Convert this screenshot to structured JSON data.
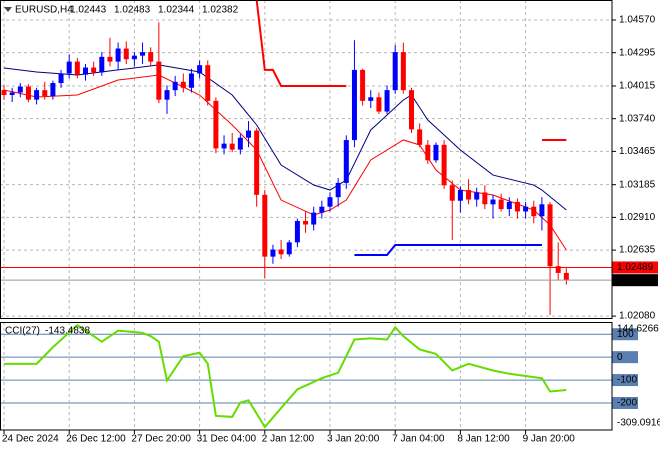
{
  "chart_data": {
    "type": "candlestick",
    "symbol": "EURUSD,H4",
    "categories": [
      "24 Dec 2024",
      null,
      null,
      null,
      null,
      null,
      null,
      null,
      "26 Dec 12:00",
      null,
      null,
      null,
      null,
      null,
      null,
      null,
      "27 Dec 20:00",
      null,
      null,
      null,
      null,
      null,
      null,
      null,
      "31 Dec 04:00",
      null,
      null,
      null,
      null,
      null,
      null,
      null,
      "2 Jan 12:00",
      null,
      null,
      null,
      null,
      null,
      null,
      null,
      "3 Jan 20:00",
      null,
      null,
      null,
      null,
      null,
      null,
      null,
      "7 Jan 04:00",
      null,
      null,
      null,
      null,
      null,
      null,
      null,
      "8 Jan 12:00",
      null,
      null,
      null,
      null,
      null,
      null,
      null,
      "9 Jan 20:00",
      null,
      null,
      null,
      null,
      null
    ],
    "open": [
      1.03981,
      1.03939,
      1.0396,
      1.0401,
      1.039,
      1.0398,
      1.0393,
      1.0404,
      1.0412,
      1.0422,
      1.0411,
      1.0417,
      1.0413,
      1.0426,
      1.0422,
      1.0433,
      1.0424,
      1.0427,
      1.043,
      1.0422,
      1.039,
      1.0398,
      1.0405,
      1.04,
      1.0412,
      1.0419,
      1.0389,
      1.0349,
      1.0353,
      1.0348,
      1.0358,
      1.0364,
      1.031,
      1.0258,
      1.0264,
      1.026,
      1.027,
      1.0288,
      1.0285,
      1.0295,
      1.03,
      1.0308,
      1.032,
      1.0356,
      1.0415,
      1.0389,
      1.0392,
      1.038,
      1.0398,
      1.043,
      1.0398,
      1.0365,
      1.0352,
      1.0339,
      1.0352,
      1.0318,
      1.0305,
      1.0314,
      1.0306,
      1.0312,
      1.0302,
      1.0306,
      1.0298,
      1.0304,
      1.0296,
      1.03,
      1.0292,
      1.0302,
      1.025,
      1.02443
    ],
    "high": [
      1.04023,
      1.04,
      1.0404,
      1.0403,
      1.04,
      1.0405,
      1.0406,
      1.0415,
      1.0428,
      1.0425,
      1.042,
      1.0422,
      1.043,
      1.0442,
      1.0438,
      1.0439,
      1.043,
      1.0438,
      1.0434,
      1.0455,
      1.0402,
      1.041,
      1.0412,
      1.0416,
      1.0423,
      1.0423,
      1.0392,
      1.036,
      1.0362,
      1.0361,
      1.0372,
      1.0366,
      1.0314,
      1.0268,
      1.0272,
      1.0272,
      1.029,
      1.0296,
      1.03,
      1.0305,
      1.0312,
      1.0324,
      1.036,
      1.044,
      1.0416,
      1.0398,
      1.0396,
      1.0402,
      1.0436,
      1.0438,
      1.04,
      1.037,
      1.0356,
      1.0354,
      1.0356,
      1.0322,
      1.0317,
      1.0323,
      1.0316,
      1.0318,
      1.031,
      1.0311,
      1.0308,
      1.0307,
      1.0304,
      1.0305,
      1.0308,
      1.0304,
      1.027,
      1.02483
    ],
    "low": [
      1.03897,
      1.0388,
      1.0392,
      1.0388,
      1.0386,
      1.039,
      1.039,
      1.04,
      1.0408,
      1.0408,
      1.0406,
      1.041,
      1.041,
      1.0418,
      1.0415,
      1.042,
      1.0418,
      1.042,
      1.0418,
      1.0387,
      1.0378,
      1.0393,
      1.0396,
      1.0396,
      1.0408,
      1.0385,
      1.0345,
      1.0344,
      1.0346,
      1.0344,
      1.035,
      1.03,
      1.024,
      1.0252,
      1.0256,
      1.0258,
      1.0266,
      1.0278,
      1.028,
      1.029,
      1.0296,
      1.03,
      1.0315,
      1.035,
      1.0385,
      1.0383,
      1.0378,
      1.0378,
      1.0395,
      1.0395,
      1.0362,
      1.035,
      1.0336,
      1.0337,
      1.0315,
      1.0272,
      1.0295,
      1.0302,
      1.03,
      1.0298,
      1.029,
      1.0296,
      1.0292,
      1.029,
      1.029,
      1.0286,
      1.028,
      1.0209,
      1.0238,
      1.02344
    ],
    "close": [
      1.03939,
      1.0396,
      1.0401,
      1.039,
      1.0398,
      1.0393,
      1.0404,
      1.0412,
      1.0422,
      1.0411,
      1.0417,
      1.0413,
      1.0426,
      1.0422,
      1.0433,
      1.0424,
      1.0427,
      1.043,
      1.0422,
      1.039,
      1.0398,
      1.0405,
      1.04,
      1.0412,
      1.0419,
      1.0389,
      1.0349,
      1.0353,
      1.0348,
      1.0358,
      1.0364,
      1.031,
      1.0258,
      1.0264,
      1.026,
      1.027,
      1.0288,
      1.0285,
      1.0295,
      1.03,
      1.0308,
      1.032,
      1.0356,
      1.0415,
      1.0389,
      1.0392,
      1.038,
      1.0398,
      1.043,
      1.0398,
      1.0365,
      1.0352,
      1.0339,
      1.0352,
      1.0318,
      1.0305,
      1.0314,
      1.0306,
      1.0312,
      1.0302,
      1.0306,
      1.0298,
      1.0304,
      1.0296,
      1.03,
      1.0292,
      1.0302,
      1.025,
      1.02443,
      1.02382
    ],
    "up_color": "#0000ff",
    "down_color": "#ff0000",
    "ylim": [
      1.02064,
      1.04738
    ],
    "yticks": [
      {
        "value": 1.0457,
        "label": "1.04570"
      },
      1.04295,
      1.04015,
      {
        "value": 1.0374,
        "label": "1.03740"
      },
      1.03465,
      1.03185,
      {
        "value": 1.0291,
        "label": "1.02910"
      },
      1.02635,
      {
        "value": 1.0208,
        "label": "1.02080"
      }
    ],
    "grid": true,
    "ask_price": 1.02489,
    "ask_color": "#ff0000",
    "overlays": [
      {
        "color": "#000080",
        "x": [
          0,
          4,
          9,
          14,
          19,
          24,
          28,
          31,
          34,
          38,
          40,
          42,
          45,
          49,
          50,
          52,
          56,
          60,
          65,
          66,
          69
        ],
        "values": [
          1.04166,
          1.04133,
          1.04107,
          1.0415,
          1.04192,
          1.04133,
          1.03939,
          1.03687,
          1.0335,
          1.03182,
          1.0314,
          1.03224,
          1.03645,
          1.03897,
          1.03939,
          1.03729,
          1.03477,
          1.03266,
          1.03182,
          1.0314,
          1.02972
        ]
      },
      {
        "color": "#ff0000",
        "x": [
          0,
          4,
          9,
          14,
          19,
          24,
          28,
          31,
          34,
          38,
          40,
          42,
          45,
          49,
          51,
          53,
          56,
          60,
          65,
          67,
          69
        ],
        "values": [
          1.03981,
          1.03922,
          1.03939,
          1.04065,
          1.04107,
          1.03939,
          1.03687,
          1.03477,
          1.03056,
          1.0293,
          1.02972,
          1.03056,
          1.03393,
          1.03561,
          1.03519,
          1.03308,
          1.0314,
          1.03098,
          1.02972,
          1.02846,
          1.02636
        ]
      },
      {
        "color": "#ff0000",
        "x": [
          31,
          32,
          33,
          34,
          42
        ],
        "values": [
          1.04738,
          1.0415,
          1.0415,
          1.04015,
          1.04015
        ]
      },
      {
        "color": "#ff0000",
        "x": [
          66,
          69
        ],
        "values": [
          1.03561,
          1.03561
        ]
      },
      {
        "color": "#0000ff",
        "x": [
          43,
          47,
          48,
          66
        ],
        "values": [
          1.02594,
          1.02594,
          1.02678,
          1.02678
        ]
      }
    ],
    "indicator": {
      "type": "line",
      "label": "CCI(27)",
      "color": "#66dd00",
      "level_color": "#5b7fb0",
      "x": [
        0,
        4,
        6,
        9,
        12,
        14,
        17,
        18,
        19,
        20,
        22,
        24,
        25,
        26,
        28,
        29,
        30,
        32,
        34,
        36,
        39,
        41,
        43,
        45,
        47,
        48,
        49,
        51,
        53,
        55,
        57,
        60,
        62,
        65,
        66,
        67,
        69
      ],
      "values": [
        -29.1,
        -29.1,
        43.2,
        139.8,
        67.4,
        115.7,
        106,
        91.5,
        67.4,
        -101.6,
        4.6,
        19.1,
        -29.1,
        -256,
        -260.8,
        -198.1,
        -188.4,
        -305,
        -222.2,
        -140.2,
        -91.9,
        -67.8,
        77,
        81.9,
        77,
        130.1,
        91.5,
        33.6,
        14.3,
        -58.1,
        -29.1,
        -58.1,
        -72.6,
        -87.1,
        -91.9,
        -149.8,
        -143.4838
      ],
      "ylim": [
        -309.0916,
        144.6266
      ],
      "yticks": [
        100,
        0,
        -100,
        -200
      ]
    }
  }
}
